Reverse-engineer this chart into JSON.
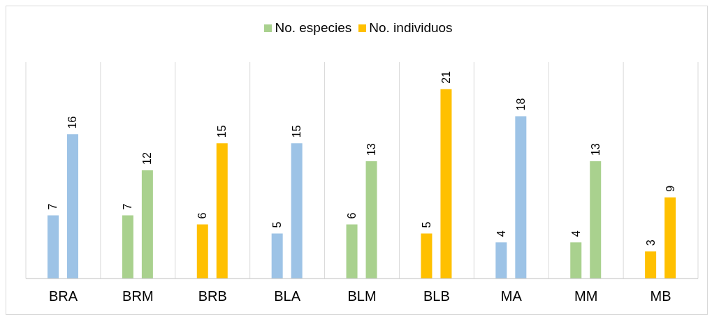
{
  "chart_data": {
    "type": "bar",
    "categories": [
      "BRA",
      "BRM",
      "BRB",
      "BLA",
      "BLM",
      "BLB",
      "MA",
      "MM",
      "MB"
    ],
    "series": [
      {
        "name": "No. especies",
        "color": "#a9d18e",
        "colors": [
          "#9dc3e6",
          "#a9d18e",
          "#ffc000",
          "#9dc3e6",
          "#a9d18e",
          "#ffc000",
          "#9dc3e6",
          "#a9d18e",
          "#ffc000"
        ],
        "values": [
          7,
          7,
          6,
          5,
          6,
          5,
          4,
          4,
          3
        ]
      },
      {
        "name": "No. individuos",
        "color": "#ffc000",
        "colors": [
          "#9dc3e6",
          "#a9d18e",
          "#ffc000",
          "#9dc3e6",
          "#a9d18e",
          "#ffc000",
          "#9dc3e6",
          "#a9d18e",
          "#ffc000"
        ],
        "values": [
          16,
          12,
          15,
          15,
          13,
          21,
          18,
          13,
          9
        ]
      }
    ],
    "data_labels": true,
    "grid": "x",
    "legend": "top"
  }
}
